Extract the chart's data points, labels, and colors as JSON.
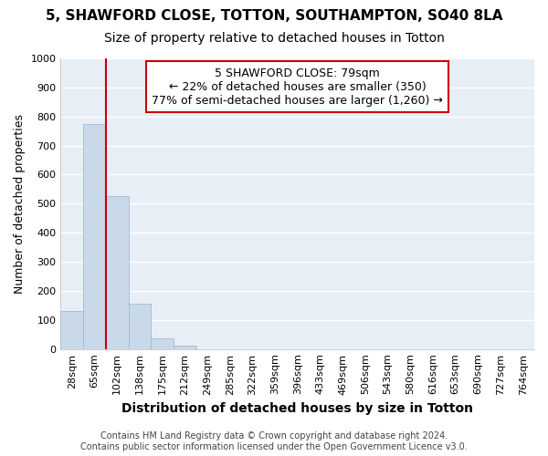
{
  "title_line1": "5, SHAWFORD CLOSE, TOTTON, SOUTHAMPTON, SO40 8LA",
  "title_line2": "Size of property relative to detached houses in Totton",
  "xlabel": "Distribution of detached houses by size in Totton",
  "ylabel": "Number of detached properties",
  "bin_labels": [
    "28sqm",
    "65sqm",
    "102sqm",
    "138sqm",
    "175sqm",
    "212sqm",
    "249sqm",
    "285sqm",
    "322sqm",
    "359sqm",
    "396sqm",
    "433sqm",
    "469sqm",
    "506sqm",
    "543sqm",
    "580sqm",
    "616sqm",
    "653sqm",
    "690sqm",
    "727sqm",
    "764sqm"
  ],
  "bar_values": [
    130,
    775,
    525,
    155,
    38,
    12,
    0,
    0,
    0,
    0,
    0,
    0,
    0,
    0,
    0,
    0,
    0,
    0,
    0,
    0,
    0
  ],
  "bar_color": "#c9d9ea",
  "bar_edge_color": "#a0b8d0",
  "vline_x": 1.5,
  "annotation_title": "5 SHAWFORD CLOSE: 79sqm",
  "annotation_line1": "← 22% of detached houses are smaller (350)",
  "annotation_line2": "77% of semi-detached houses are larger (1,260) →",
  "annotation_box_color": "#ffffff",
  "annotation_box_edge": "#cc0000",
  "vline_color": "#cc0000",
  "ylim": [
    0,
    1000
  ],
  "yticks": [
    0,
    100,
    200,
    300,
    400,
    500,
    600,
    700,
    800,
    900,
    1000
  ],
  "footer_line1": "Contains HM Land Registry data © Crown copyright and database right 2024.",
  "footer_line2": "Contains public sector information licensed under the Open Government Licence v3.0.",
  "bg_color": "#ffffff",
  "plot_bg_color": "#e8eef5",
  "grid_color": "#ffffff",
  "title1_fontsize": 11,
  "title2_fontsize": 10,
  "annot_fontsize": 9,
  "xlabel_fontsize": 10,
  "ylabel_fontsize": 9,
  "tick_fontsize": 8,
  "footer_fontsize": 7
}
